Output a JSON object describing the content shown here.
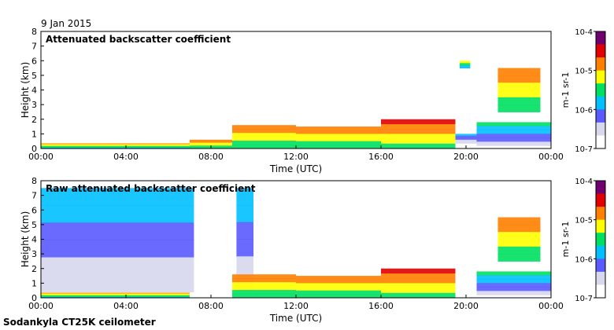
{
  "date": "9 Jan 2015",
  "instrument": "Sodankyla CT25K ceilometer",
  "chart_data": [
    {
      "type": "heatmap",
      "title": "Attenuated backscatter coefficient",
      "xlabel": "Time (UTC)",
      "ylabel": "Height (km)",
      "x_ticks": [
        "00:00",
        "04:00",
        "08:00",
        "12:00",
        "16:00",
        "20:00",
        "00:00"
      ],
      "y_ticks": [
        "0",
        "1",
        "2",
        "3",
        "4",
        "5",
        "6",
        "7",
        "8"
      ],
      "xlim": [
        0,
        24
      ],
      "ylim": [
        0,
        8
      ],
      "colorbar": {
        "scale": "log",
        "range": [
          1e-07,
          0.0001
        ],
        "ticks": [
          "10-7",
          "10-6",
          "10-5",
          "10-4"
        ],
        "unit": "m-1 sr-1",
        "colors": [
          "#ffffff",
          "#d7d7ee",
          "#5a5aff",
          "#00c0ff",
          "#00e060",
          "#ffff00",
          "#ff8000",
          "#e00000",
          "#700070"
        ]
      },
      "regions": [
        {
          "x": [
            0,
            7
          ],
          "y": [
            0,
            0.35
          ],
          "level": 0.55
        },
        {
          "x": [
            7,
            9
          ],
          "y": [
            0,
            0.6
          ],
          "level": 0.6
        },
        {
          "x": [
            9,
            12
          ],
          "y": [
            0,
            1.6
          ],
          "level": 0.6
        },
        {
          "x": [
            12,
            16
          ],
          "y": [
            0,
            1.5
          ],
          "level": 0.6
        },
        {
          "x": [
            16,
            19.5
          ],
          "y": [
            0,
            2.0
          ],
          "level": 0.65
        },
        {
          "x": [
            19.5,
            20.5
          ],
          "y": [
            0.2,
            1.0
          ],
          "level": 0.25
        },
        {
          "x": [
            20.5,
            24
          ],
          "y": [
            0.2,
            1.8
          ],
          "level": 0.35
        },
        {
          "x": [
            21.5,
            23.5
          ],
          "y": [
            2.5,
            5.5
          ],
          "level": 0.6
        },
        {
          "x": [
            19.7,
            20.2
          ],
          "y": [
            5.5,
            6.0
          ],
          "level": 0.5
        }
      ]
    },
    {
      "type": "heatmap",
      "title": "Raw attenuated backscatter coefficient",
      "xlabel": "Time (UTC)",
      "ylabel": "Height (km)",
      "x_ticks": [
        "00:00",
        "04:00",
        "08:00",
        "12:00",
        "16:00",
        "20:00",
        "00:00"
      ],
      "y_ticks": [
        "0",
        "1",
        "2",
        "3",
        "4",
        "5",
        "6",
        "7",
        "8"
      ],
      "xlim": [
        0,
        24
      ],
      "ylim": [
        0,
        8
      ],
      "colorbar": {
        "scale": "log",
        "range": [
          1e-07,
          0.0001
        ],
        "ticks": [
          "10-7",
          "10-6",
          "10-5",
          "10-4"
        ],
        "unit": "m-1 sr-1",
        "colors": [
          "#ffffff",
          "#d7d7ee",
          "#5a5aff",
          "#00c0ff",
          "#00e060",
          "#ffff00",
          "#ff8000",
          "#e00000",
          "#700070"
        ]
      },
      "regions": [
        {
          "x": [
            0,
            7.2
          ],
          "y": [
            0.4,
            7.5
          ],
          "level": 0.3
        },
        {
          "x": [
            9.2,
            10
          ],
          "y": [
            0.5,
            7.5
          ],
          "level": 0.3
        },
        {
          "x": [
            0,
            7
          ],
          "y": [
            0,
            0.35
          ],
          "level": 0.55
        },
        {
          "x": [
            9,
            12
          ],
          "y": [
            0,
            1.6
          ],
          "level": 0.6
        },
        {
          "x": [
            12,
            16
          ],
          "y": [
            0,
            1.5
          ],
          "level": 0.6
        },
        {
          "x": [
            16,
            19.5
          ],
          "y": [
            0,
            2.0
          ],
          "level": 0.65
        },
        {
          "x": [
            20.5,
            24
          ],
          "y": [
            0.2,
            1.8
          ],
          "level": 0.35
        },
        {
          "x": [
            21.5,
            23.5
          ],
          "y": [
            2.5,
            5.5
          ],
          "level": 0.6
        }
      ]
    }
  ]
}
